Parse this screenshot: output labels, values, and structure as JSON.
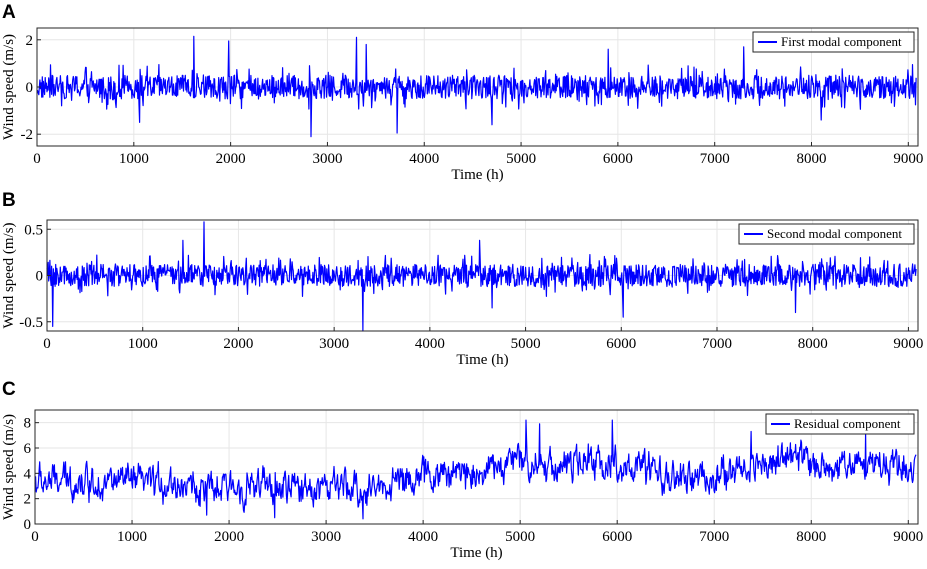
{
  "chart_data": [
    {
      "type": "line",
      "panel_label": "A",
      "xlabel": "Time (h)",
      "ylabel": "Wind speed (m/s)",
      "xlim": [
        0,
        9100
      ],
      "ylim": [
        -2.5,
        2.5
      ],
      "x_ticks": [
        "0",
        "1000",
        "2000",
        "3000",
        "4000",
        "5000",
        "6000",
        "7000",
        "8000",
        "9000"
      ],
      "y_ticks": [
        "-2",
        "0",
        "2"
      ],
      "y_tick_values": [
        -2,
        0,
        2
      ],
      "grid": true,
      "legend_position": "top-right",
      "series": [
        {
          "name": "First modal component",
          "color": "#0000ff",
          "style": "high-frequency oscillation around 0",
          "x_range": [
            0,
            9080
          ],
          "typical_amplitude": 0.5,
          "peaks": [
            [
              1620,
              2.15
            ],
            [
              1980,
              1.95
            ],
            [
              2830,
              -2.1
            ],
            [
              3300,
              2.1
            ],
            [
              3720,
              -1.95
            ],
            [
              3400,
              1.8
            ],
            [
              1060,
              -1.5
            ],
            [
              4700,
              -1.6
            ],
            [
              5900,
              1.6
            ],
            [
              7300,
              1.7
            ],
            [
              8100,
              -1.4
            ]
          ]
        }
      ]
    },
    {
      "type": "line",
      "panel_label": "B",
      "xlabel": "Time (h)",
      "ylabel": "Wind speed (m/s)",
      "xlim": [
        0,
        9100
      ],
      "ylim": [
        -0.6,
        0.6
      ],
      "x_ticks": [
        "0",
        "1000",
        "2000",
        "3000",
        "4000",
        "5000",
        "6000",
        "7000",
        "8000",
        "9000"
      ],
      "y_ticks": [
        "-0.5",
        "0",
        "0.5"
      ],
      "y_tick_values": [
        -0.5,
        0,
        0.5
      ],
      "grid": true,
      "legend_position": "top-right",
      "series": [
        {
          "name": "Second modal component",
          "color": "#0000ff",
          "style": "high-frequency oscillation around 0",
          "x_range": [
            0,
            9080
          ],
          "typical_amplitude": 0.12,
          "peaks": [
            [
              1640,
              0.58
            ],
            [
              3300,
              0.55
            ],
            [
              3300,
              -0.6
            ],
            [
              60,
              -0.55
            ],
            [
              4650,
              -0.35
            ],
            [
              6020,
              -0.45
            ],
            [
              4520,
              0.38
            ],
            [
              1420,
              0.38
            ],
            [
              7820,
              -0.4
            ]
          ]
        }
      ]
    },
    {
      "type": "line",
      "panel_label": "C",
      "xlabel": "Time (h)",
      "ylabel": "Wind speed (m/s)",
      "xlim": [
        0,
        9100
      ],
      "ylim": [
        0,
        9
      ],
      "x_ticks": [
        "0",
        "1000",
        "2000",
        "3000",
        "4000",
        "5000",
        "6000",
        "7000",
        "8000",
        "9000"
      ],
      "y_ticks": [
        "0",
        "2",
        "4",
        "6",
        "8"
      ],
      "y_tick_values": [
        0,
        2,
        4,
        6,
        8
      ],
      "grid": true,
      "legend_position": "top-right",
      "series": [
        {
          "name": "Residual component",
          "color": "#0000ff",
          "style": "noisy slowly varying wind speed",
          "x_range": [
            0,
            9080
          ],
          "trend": [
            [
              0,
              3.3
            ],
            [
              500,
              3.4
            ],
            [
              1000,
              3.3
            ],
            [
              1500,
              3.2
            ],
            [
              1800,
              2.6
            ],
            [
              2200,
              3.0
            ],
            [
              2600,
              2.8
            ],
            [
              3000,
              3.0
            ],
            [
              3400,
              2.6
            ],
            [
              3800,
              3.6
            ],
            [
              4200,
              3.9
            ],
            [
              4600,
              4.2
            ],
            [
              5000,
              5.0
            ],
            [
              5400,
              4.6
            ],
            [
              5800,
              4.9
            ],
            [
              6200,
              4.4
            ],
            [
              6600,
              3.5
            ],
            [
              7000,
              3.7
            ],
            [
              7400,
              4.6
            ],
            [
              7800,
              5.3
            ],
            [
              8200,
              4.5
            ],
            [
              8600,
              4.9
            ],
            [
              9000,
              4.6
            ]
          ],
          "typical_amplitude": 1.2,
          "peaks": [
            [
              5060,
              8.2
            ],
            [
              5950,
              8.2
            ],
            [
              5200,
              7.9
            ],
            [
              8560,
              7.2
            ],
            [
              7380,
              7.3
            ],
            [
              3380,
              0.4
            ],
            [
              1770,
              0.7
            ],
            [
              2470,
              0.5
            ]
          ]
        }
      ]
    }
  ]
}
